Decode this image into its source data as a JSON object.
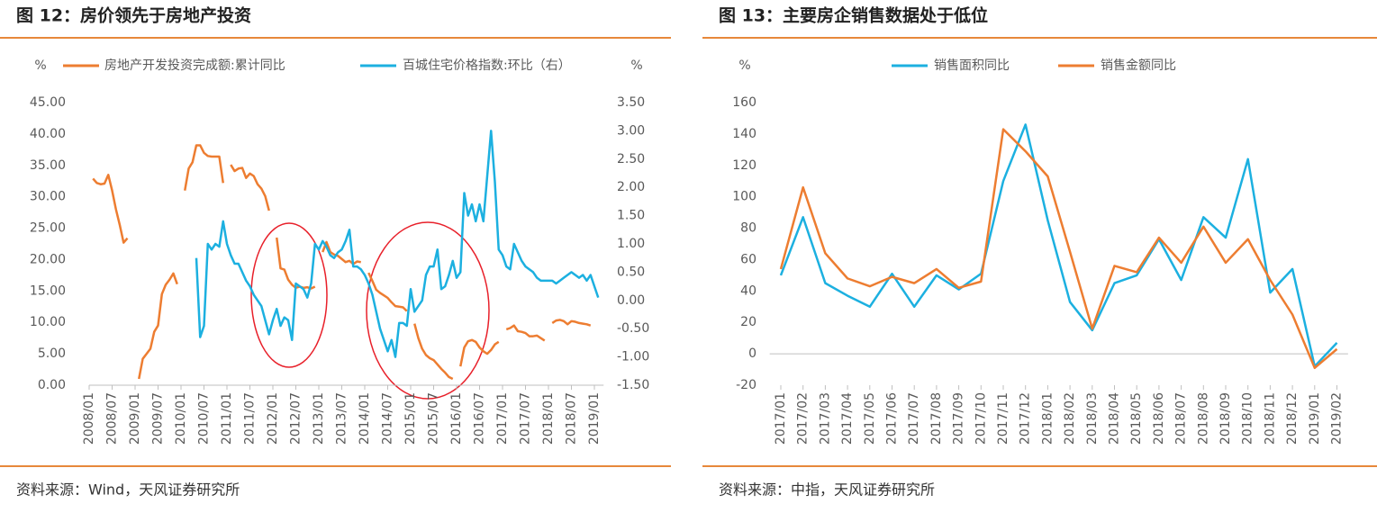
{
  "chart_data": [
    {
      "type": "line",
      "title": "图 12：房价领先于房地产投资",
      "source": "资料来源：Wind，天风证券研究所",
      "y_label": "%",
      "y2_label": "%",
      "categories": [
        "2008/01",
        null,
        null,
        null,
        null,
        null,
        "2008/07",
        null,
        null,
        null,
        null,
        null,
        "2009/01",
        null,
        null,
        null,
        null,
        null,
        "2009/07",
        null,
        null,
        null,
        null,
        null,
        "2010/01",
        null,
        null,
        null,
        null,
        null,
        "2010/07",
        null,
        null,
        null,
        null,
        null,
        "2011/01",
        null,
        null,
        null,
        null,
        null,
        "2011/07",
        null,
        null,
        null,
        null,
        null,
        "2012/01",
        null,
        null,
        null,
        null,
        null,
        "2012/07",
        null,
        null,
        null,
        null,
        null,
        "2013/01",
        null,
        null,
        null,
        null,
        null,
        "2013/07",
        null,
        null,
        null,
        null,
        null,
        "2014/01",
        null,
        null,
        null,
        null,
        null,
        "2014/07",
        null,
        null,
        null,
        null,
        null,
        "2015/01",
        null,
        null,
        null,
        null,
        null,
        "2015/07",
        null,
        null,
        null,
        null,
        null,
        "2016/01",
        null,
        null,
        null,
        null,
        null,
        "2016/07",
        null,
        null,
        null,
        null,
        null,
        "2017/01",
        null,
        null,
        null,
        null,
        null,
        "2017/07",
        null,
        null,
        null,
        null,
        null,
        "2018/01",
        null,
        null,
        null,
        null,
        null,
        "2018/07",
        null,
        null,
        null,
        null,
        null,
        "2019/01",
        null
      ],
      "ylim": [
        0,
        45
      ],
      "yticks": [
        {
          "value": 0,
          "label": "0.00"
        },
        {
          "value": 5,
          "label": "5.00"
        },
        {
          "value": 10,
          "label": "10.00"
        },
        {
          "value": 15,
          "label": "15.00"
        },
        {
          "value": 20,
          "label": "20.00"
        },
        {
          "value": 25,
          "label": "25.00"
        },
        {
          "value": 30,
          "label": "30.00"
        },
        {
          "value": 35,
          "label": "35.00"
        },
        {
          "value": 40,
          "label": "40.00"
        },
        {
          "value": 45,
          "label": "45.00"
        }
      ],
      "y2lim": [
        -1.5,
        3.5
      ],
      "y2ticks": [
        {
          "value": -1.5,
          "label": "-1.50"
        },
        {
          "value": -1,
          "label": "-1.00"
        },
        {
          "value": -0.5,
          "label": "-0.50"
        },
        {
          "value": 0,
          "label": "0.00"
        },
        {
          "value": 0.5,
          "label": "0.50"
        },
        {
          "value": 1,
          "label": "1.00"
        },
        {
          "value": 1.5,
          "label": "1.50"
        },
        {
          "value": 2,
          "label": "2.00"
        },
        {
          "value": 2.5,
          "label": "2.50"
        },
        {
          "value": 3,
          "label": "3.00"
        },
        {
          "value": 3.5,
          "label": "3.50"
        }
      ],
      "series": [
        {
          "name": "房地产开发投资完成额:累计同比",
          "color": "#ed7d31",
          "values": [
            null,
            32.9,
            32.2,
            32.0,
            32.1,
            33.5,
            31.0,
            28.0,
            25.5,
            22.7,
            23.4,
            null,
            null,
            1.0,
            4.2,
            5.0,
            5.8,
            8.5,
            9.5,
            14.5,
            16.0,
            16.8,
            17.8,
            16.1,
            null,
            31.0,
            34.5,
            35.5,
            38.2,
            38.2,
            37.0,
            36.5,
            36.4,
            36.4,
            36.4,
            32.2,
            null,
            35.1,
            34.1,
            34.5,
            34.6,
            33.0,
            33.7,
            33.3,
            32.0,
            31.3,
            30.1,
            27.8,
            null,
            23.5,
            18.6,
            18.4,
            16.8,
            16.0,
            15.5,
            15.7,
            15.5,
            15.6,
            15.4,
            15.7,
            null,
            21.2,
            22.8,
            21.2,
            20.8,
            20.6,
            20.1,
            19.6,
            19.8,
            19.3,
            19.7,
            19.6,
            null,
            17.9,
            16.6,
            15.2,
            14.7,
            14.3,
            13.9,
            13.2,
            12.6,
            12.5,
            12.4,
            11.8,
            null,
            9.8,
            7.5,
            5.8,
            4.8,
            4.3,
            4.0,
            3.3,
            2.6,
            2.0,
            1.3,
            1.0,
            null,
            3.0,
            6.0,
            7.0,
            7.2,
            6.9,
            6.0,
            5.4,
            5.0,
            5.6,
            6.5,
            6.9,
            null,
            8.9,
            9.1,
            9.5,
            8.6,
            8.5,
            8.3,
            7.8,
            7.8,
            7.9,
            7.5,
            7.1,
            null,
            9.9,
            10.3,
            10.4,
            10.2,
            9.7,
            10.2,
            10.1,
            9.9,
            9.8,
            9.7,
            9.5,
            null,
            null
          ]
        },
        {
          "name": "百城住宅价格指数:环比（右）",
          "color": "#1cb0e0",
          "axis": "y2",
          "values": [
            null,
            null,
            null,
            null,
            null,
            null,
            null,
            null,
            null,
            null,
            null,
            null,
            null,
            null,
            null,
            null,
            null,
            null,
            null,
            null,
            null,
            null,
            null,
            null,
            null,
            null,
            null,
            null,
            0.75,
            -0.65,
            -0.45,
            1.0,
            0.9,
            1.0,
            0.95,
            1.4,
            1.0,
            0.8,
            0.65,
            0.65,
            0.5,
            0.35,
            0.25,
            0.1,
            0.0,
            -0.1,
            -0.35,
            -0.6,
            -0.35,
            -0.15,
            -0.45,
            -0.3,
            -0.35,
            -0.7,
            0.3,
            0.25,
            0.2,
            0.05,
            0.3,
            1.0,
            0.9,
            1.05,
            0.95,
            0.8,
            0.75,
            0.85,
            0.9,
            1.05,
            1.25,
            0.6,
            0.6,
            0.55,
            0.45,
            0.3,
            0.1,
            -0.2,
            -0.5,
            -0.7,
            -0.9,
            -0.7,
            -1.0,
            -0.4,
            -0.4,
            -0.45,
            0.2,
            -0.2,
            -0.1,
            0.0,
            0.45,
            0.6,
            0.6,
            0.9,
            0.2,
            0.25,
            0.45,
            0.7,
            0.4,
            0.5,
            1.9,
            1.5,
            1.7,
            1.4,
            1.7,
            1.4,
            2.2,
            3.0,
            2.1,
            0.9,
            0.8,
            0.6,
            0.55,
            1.0,
            0.85,
            0.7,
            0.6,
            0.55,
            0.5,
            0.4,
            0.35,
            0.35,
            0.35,
            0.35,
            0.3,
            0.35,
            0.4,
            0.45,
            0.5,
            0.45,
            0.4,
            0.45,
            0.35,
            0.45,
            0.25,
            0.05
          ]
        }
      ]
    },
    {
      "type": "line",
      "title": "图 13：主要房企销售数据处于低位",
      "source": "资料来源：中指，天风证券研究所",
      "y_label": "%",
      "categories": [
        "2017/01",
        "2017/02",
        "2017/03",
        "2017/04",
        "2017/05",
        "2017/06",
        "2017/07",
        "2017/08",
        "2017/09",
        "2017/10",
        "2017/11",
        "2017/12",
        "2018/01",
        "2018/02",
        "2018/03",
        "2018/04",
        "2018/05",
        "2018/06",
        "2018/07",
        "2018/08",
        "2018/09",
        "2018/10",
        "2018/11",
        "2018/12",
        "2019/01",
        "2019/02"
      ],
      "ylim": [
        -20,
        160
      ],
      "yticks": [
        -20,
        0,
        20,
        40,
        60,
        80,
        100,
        120,
        140,
        160
      ],
      "series": [
        {
          "name": "销售面积同比",
          "color": "#1cb0e0",
          "values": [
            50,
            87,
            45,
            37,
            30,
            51,
            30,
            50,
            41,
            51,
            110,
            146,
            85,
            33,
            15,
            45,
            50,
            73,
            47,
            87,
            74,
            124,
            39,
            54,
            -8,
            7
          ]
        },
        {
          "name": "销售金额同比",
          "color": "#ed7d31",
          "values": [
            54,
            106,
            64,
            48,
            43,
            49,
            45,
            54,
            42,
            46,
            143,
            129,
            113,
            65,
            16,
            56,
            52,
            74,
            58,
            81,
            58,
            73,
            47,
            25,
            -9,
            3
          ]
        }
      ]
    }
  ]
}
